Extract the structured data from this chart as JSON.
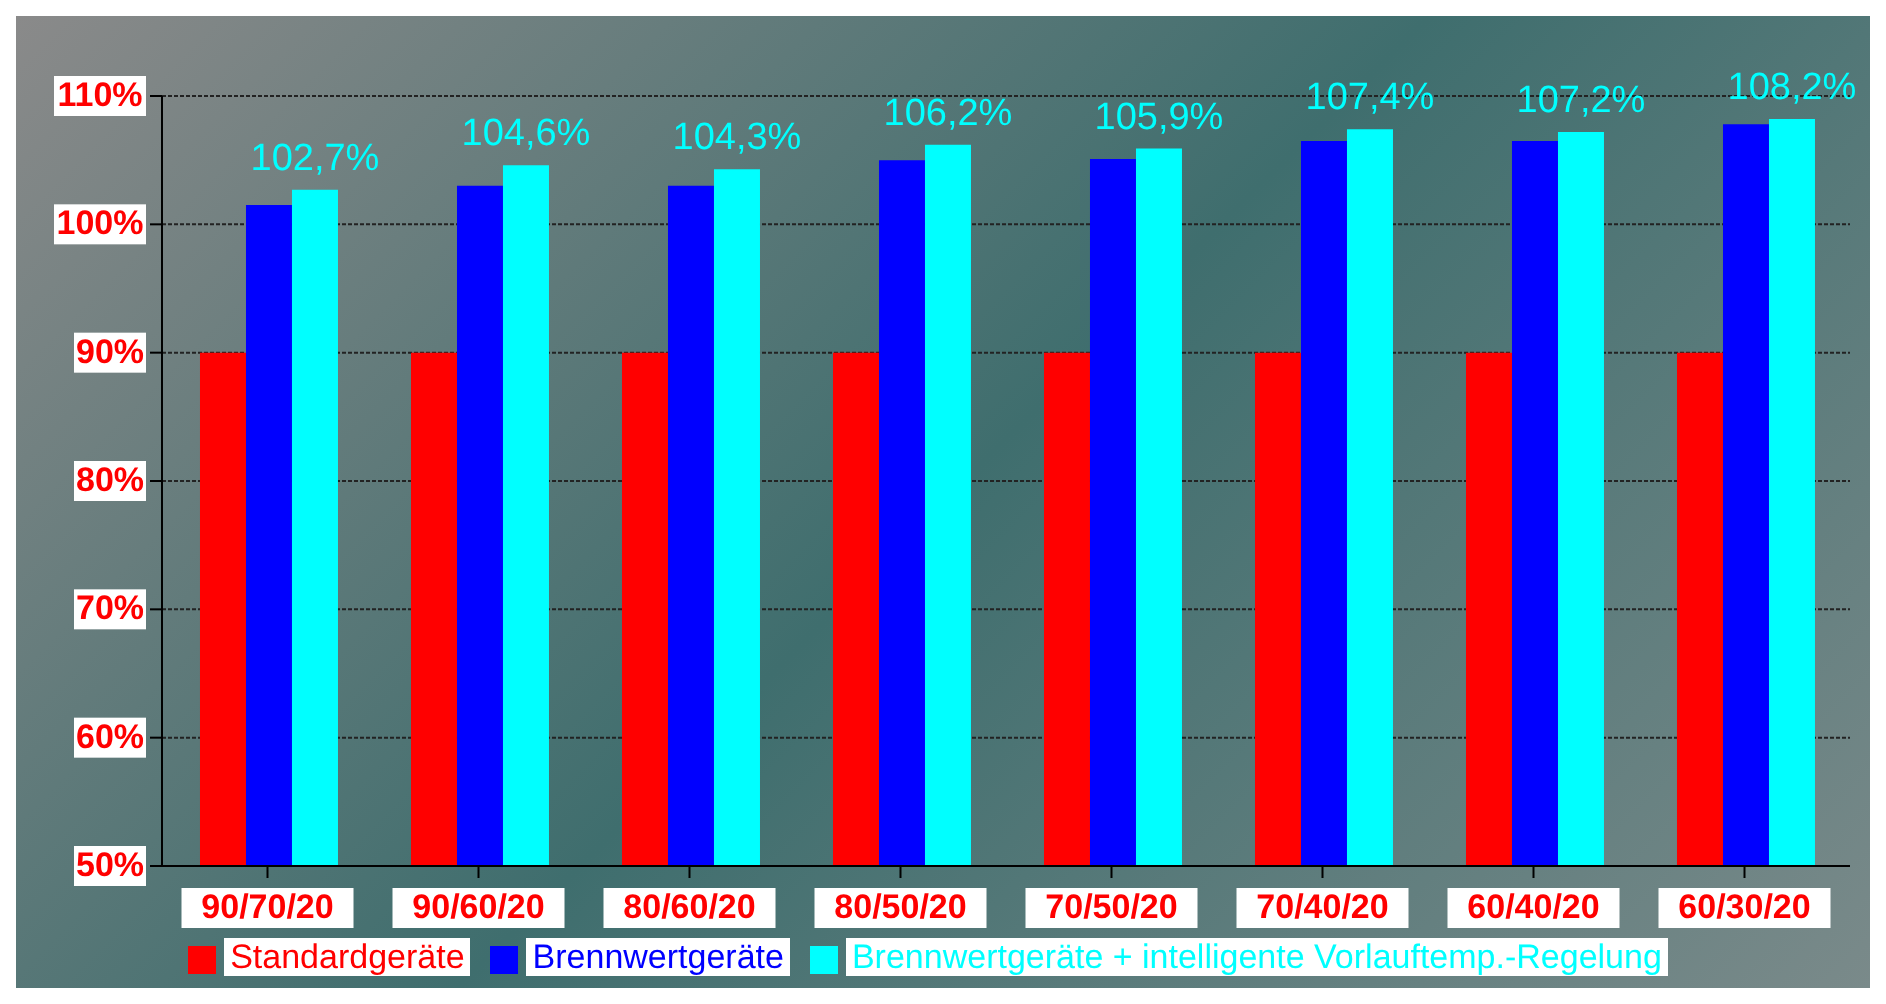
{
  "chart_data": {
    "type": "bar",
    "categories": [
      "90/70/20",
      "90/60/20",
      "80/60/20",
      "80/50/20",
      "70/50/20",
      "70/40/20",
      "60/40/20",
      "60/30/20"
    ],
    "series": [
      {
        "name": "Standardgeräte",
        "color": "#ff0000",
        "values": [
          90,
          90,
          90,
          90,
          90,
          90,
          90,
          90
        ]
      },
      {
        "name": "Brennwertgeräte",
        "color": "#0000ff",
        "values": [
          101.5,
          103,
          103,
          105,
          105.1,
          106.5,
          106.5,
          107.8
        ]
      },
      {
        "name": "Brennwertgeräte + intelligente Vorlauftemp.-Regelung",
        "color": "#00ffff",
        "values": [
          102.7,
          104.6,
          104.3,
          106.2,
          105.9,
          107.4,
          107.2,
          108.2
        ],
        "value_labels": [
          "102,7%",
          "104,6%",
          "104,3%",
          "106,2%",
          "105,9%",
          "107,4%",
          "107,2%",
          "108,2%"
        ]
      }
    ],
    "ylim": [
      50,
      110
    ],
    "yticks": [
      {
        "value": 50,
        "label": "50%"
      },
      {
        "value": 60,
        "label": "60%"
      },
      {
        "value": 70,
        "label": "70%"
      },
      {
        "value": 80,
        "label": "80%"
      },
      {
        "value": 90,
        "label": "90%"
      },
      {
        "value": 100,
        "label": "100%"
      },
      {
        "value": 110,
        "label": "110%"
      }
    ],
    "grid": "y",
    "legend": "bottom"
  }
}
